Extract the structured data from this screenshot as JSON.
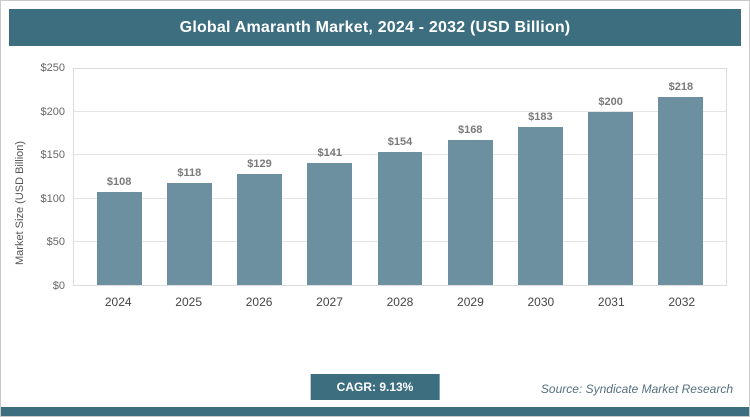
{
  "header": {
    "title": "Global Amaranth Market, 2024 - 2032 (USD Billion)"
  },
  "chart_data": {
    "type": "bar",
    "title": "Global Amaranth Market, 2024 - 2032 (USD Billion)",
    "categories": [
      "2024",
      "2025",
      "2026",
      "2027",
      "2028",
      "2029",
      "2030",
      "2031",
      "2032"
    ],
    "values": [
      108,
      118,
      129,
      141,
      154,
      168,
      183,
      200,
      218
    ],
    "value_labels": [
      "$108",
      "$118",
      "$129",
      "$141",
      "$154",
      "$168",
      "$183",
      "$200",
      "$218"
    ],
    "xlabel": "",
    "ylabel": "Market Size (USD Billion)",
    "ylim": [
      0,
      250
    ],
    "ytick_step": 50,
    "ytick_labels": [
      "$0",
      "$50",
      "$100",
      "$150",
      "$200",
      "$250"
    ],
    "grid": true,
    "legend": "none",
    "bar_color": "#6d90a0"
  },
  "footer": {
    "cagr_label": "CAGR: 9.13%",
    "source": "Source: Syndicate Market Research"
  },
  "colors": {
    "header_bg": "#3c6e80",
    "bar": "#6d90a0",
    "accent": "#3c6e80"
  }
}
